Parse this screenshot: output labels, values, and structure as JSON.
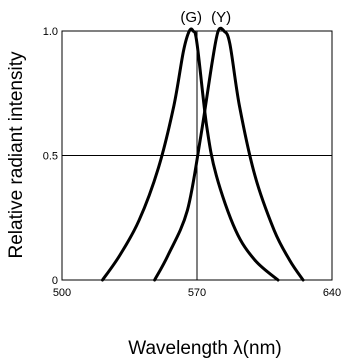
{
  "chart_data": {
    "type": "line",
    "xlabel": "Wavelength λ(nm)",
    "ylabel": "Relative radiant intensity",
    "xlim": [
      500,
      640
    ],
    "ylim": [
      0,
      1.0
    ],
    "xticks": [
      500,
      570,
      640
    ],
    "xtick_labels": [
      "500",
      "570",
      "640"
    ],
    "yticks": [
      0,
      0.5,
      1.0
    ],
    "ytick_labels": [
      "0",
      "0.5",
      "1.0"
    ],
    "grid_x": [
      570
    ],
    "grid_y": [
      0.5
    ],
    "series": [
      {
        "name": "(G)",
        "x": [
          521,
          530,
          540,
          550,
          558,
          563,
          566,
          568,
          570,
          575,
          580,
          590,
          600,
          612
        ],
        "y": [
          0.0,
          0.1,
          0.24,
          0.45,
          0.7,
          0.92,
          1.0,
          1.0,
          0.95,
          0.62,
          0.42,
          0.2,
          0.08,
          0.0
        ]
      },
      {
        "name": "(Y)",
        "x": [
          548,
          555,
          565,
          572,
          578,
          581,
          584,
          587,
          592,
          600,
          610,
          618,
          625
        ],
        "y": [
          0.0,
          0.1,
          0.28,
          0.58,
          0.88,
          1.0,
          1.0,
          0.95,
          0.7,
          0.42,
          0.2,
          0.08,
          0.0
        ]
      }
    ]
  }
}
